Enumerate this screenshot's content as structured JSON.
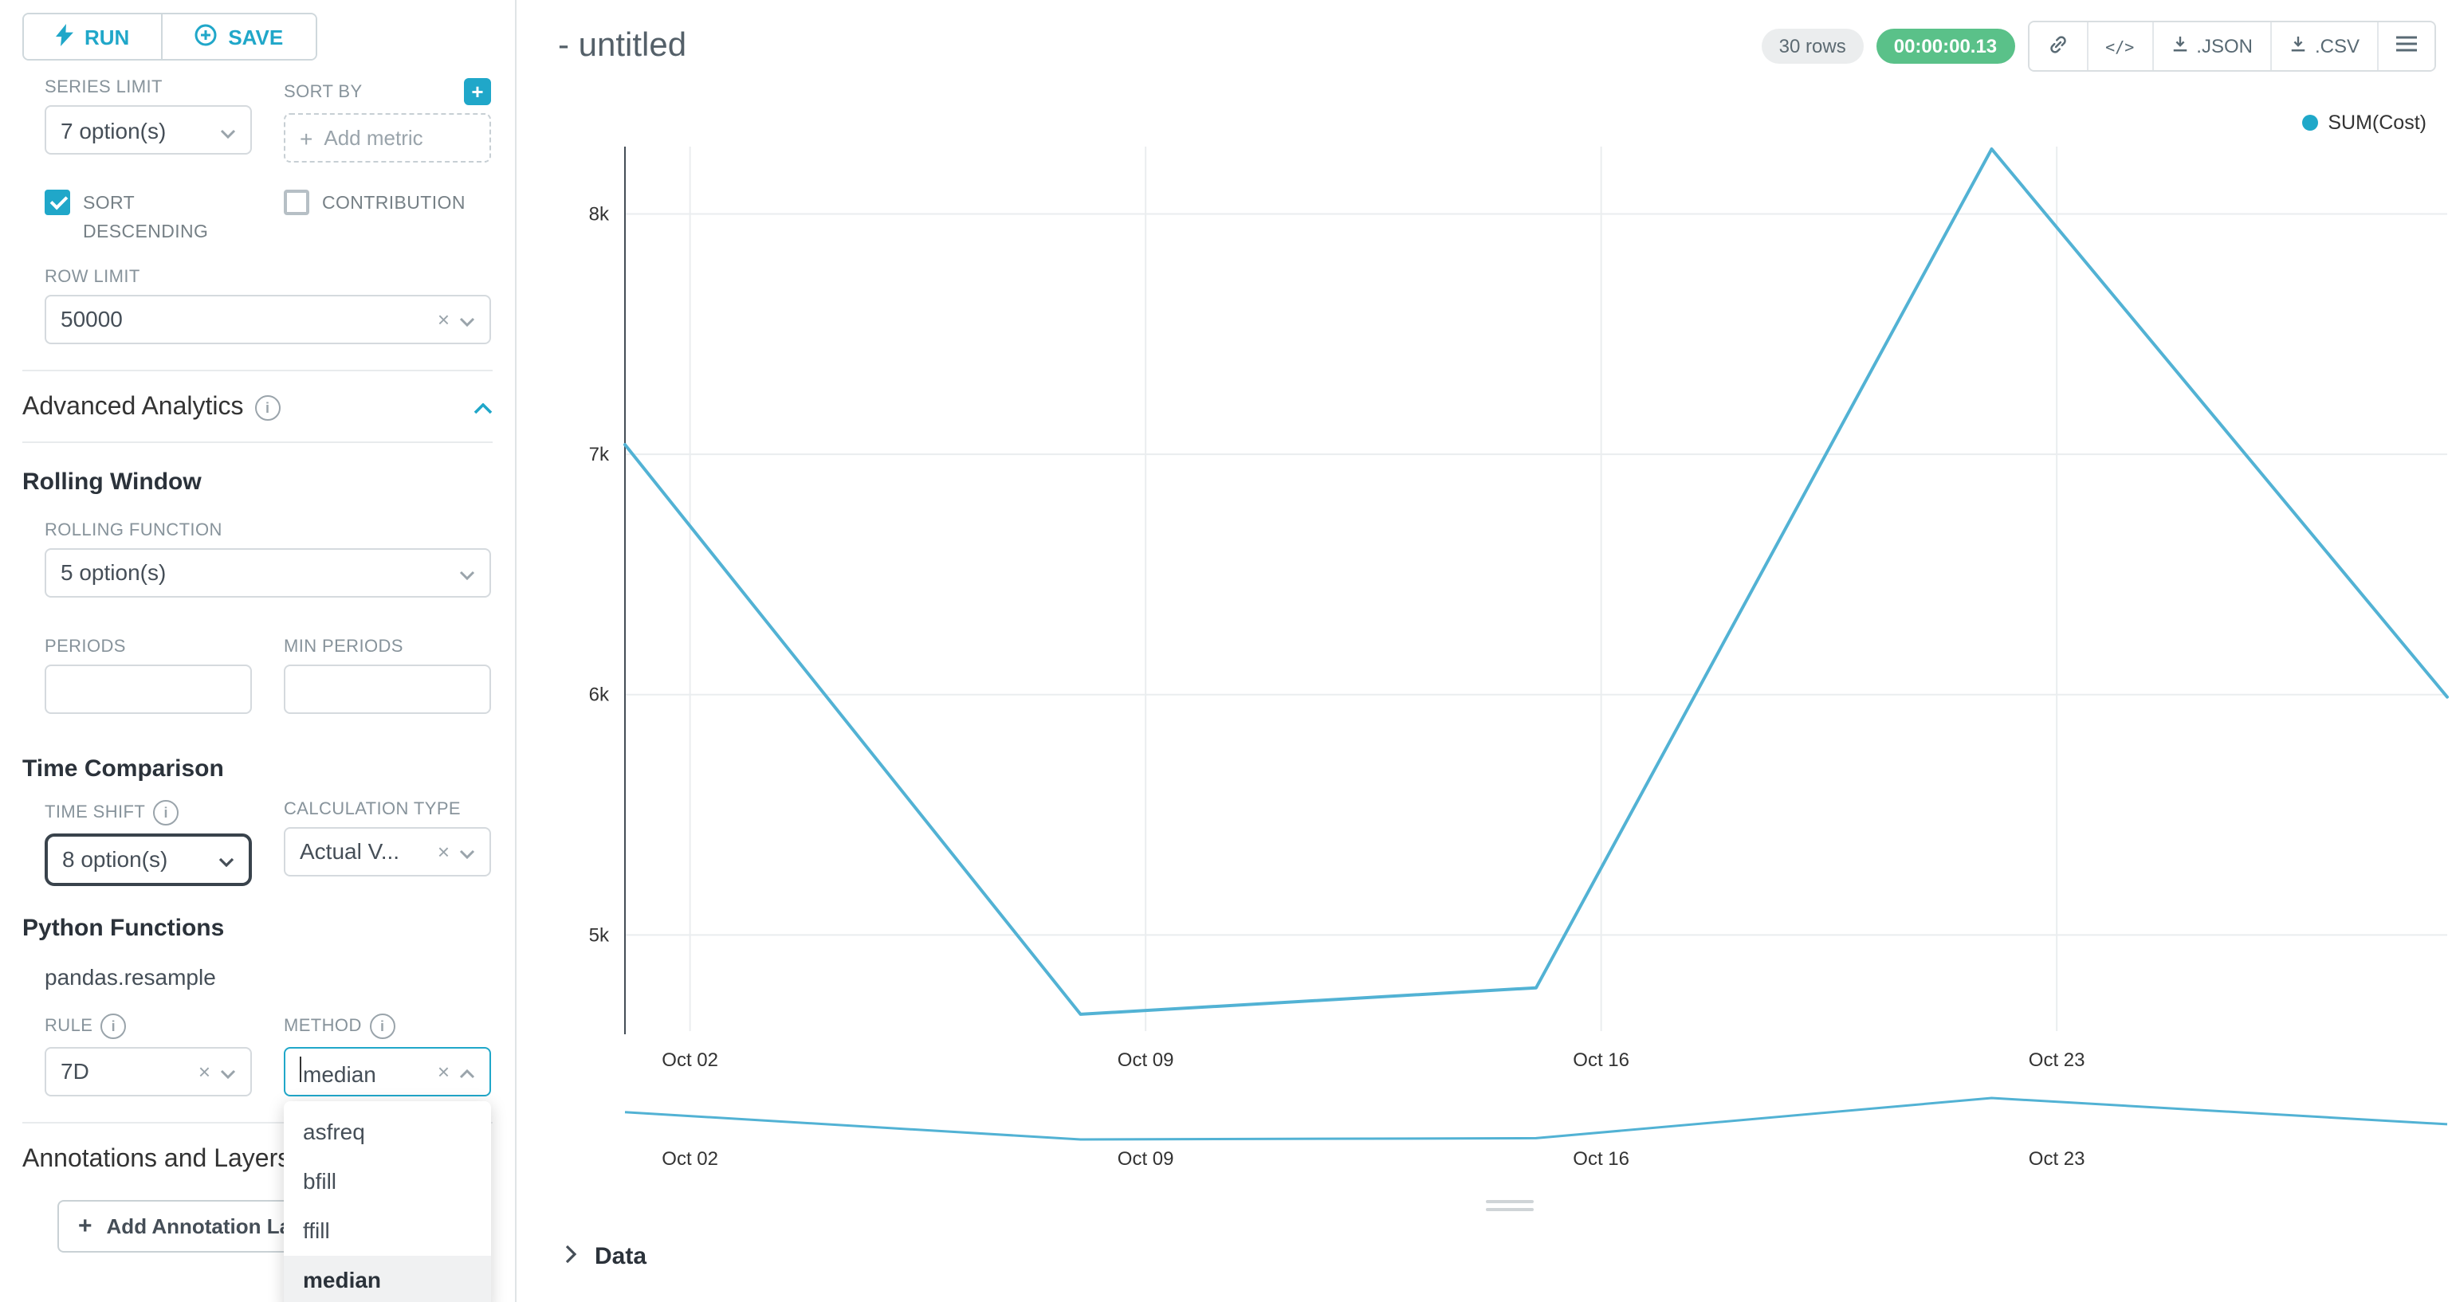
{
  "sidebar": {
    "run_button": "RUN",
    "save_button": "SAVE",
    "query": {
      "series_limit_label": "SERIES LIMIT",
      "series_limit_value": "7 option(s)",
      "sort_by_label": "SORT BY",
      "sort_by_placeholder": "Add metric",
      "sort_descending_label": "SORT DESCENDING",
      "sort_descending_checked": true,
      "contribution_label": "CONTRIBUTION",
      "contribution_checked": false,
      "row_limit_label": "ROW LIMIT",
      "row_limit_value": "50000"
    },
    "advanced_analytics": {
      "title": "Advanced Analytics",
      "rolling_window": {
        "title": "Rolling Window",
        "rolling_function_label": "ROLLING FUNCTION",
        "rolling_function_value": "5 option(s)",
        "periods_label": "PERIODS",
        "periods_value": "",
        "min_periods_label": "MIN PERIODS",
        "min_periods_value": ""
      },
      "time_comparison": {
        "title": "Time Comparison",
        "time_shift_label": "TIME SHIFT",
        "time_shift_value": "8 option(s)",
        "calculation_type_label": "CALCULATION TYPE",
        "calculation_type_value": "Actual V..."
      },
      "python_functions": {
        "title": "Python Functions",
        "subtitle": "pandas.resample",
        "rule_label": "RULE",
        "rule_value": "7D",
        "method_label": "METHOD",
        "method_value": "median",
        "method_options": [
          "asfreq",
          "bfill",
          "ffill",
          "median"
        ],
        "method_selected": "median"
      }
    },
    "annotations": {
      "title": "Annotations and Layers",
      "add_button": "Add Annotation Layer"
    }
  },
  "header": {
    "title": "- untitled",
    "rows_badge": "30 rows",
    "timer_badge": "00:00:00.13",
    "export_json": ".JSON",
    "export_csv": ".CSV"
  },
  "legend": {
    "label": "SUM(Cost)",
    "color": "#1FA8C9"
  },
  "chart_data": {
    "type": "line",
    "title": "",
    "series": [
      {
        "name": "SUM(Cost)",
        "x": [
          "Oct 01",
          "Oct 08",
          "Oct 15",
          "Oct 22",
          "Oct 29"
        ],
        "x_days": [
          0,
          7,
          14,
          21,
          28
        ],
        "values": [
          7040,
          4670,
          4780,
          8270,
          5990
        ]
      }
    ],
    "x_ticks": [
      {
        "day": 1,
        "label": "Oct 02"
      },
      {
        "day": 8,
        "label": "Oct 09"
      },
      {
        "day": 15,
        "label": "Oct 16"
      },
      {
        "day": 22,
        "label": "Oct 23"
      }
    ],
    "y_ticks": [
      {
        "value": 5000,
        "label": "5k"
      },
      {
        "value": 6000,
        "label": "6k"
      },
      {
        "value": 7000,
        "label": "7k"
      },
      {
        "value": 8000,
        "label": "8k"
      }
    ],
    "ylim": [
      4600,
      8280
    ],
    "x_domain_days": [
      0,
      28
    ],
    "line_color": "#52b2d4",
    "grid": true,
    "legend_position": "top-right",
    "has_range_preview": true
  },
  "data_panel": {
    "label": "Data"
  }
}
